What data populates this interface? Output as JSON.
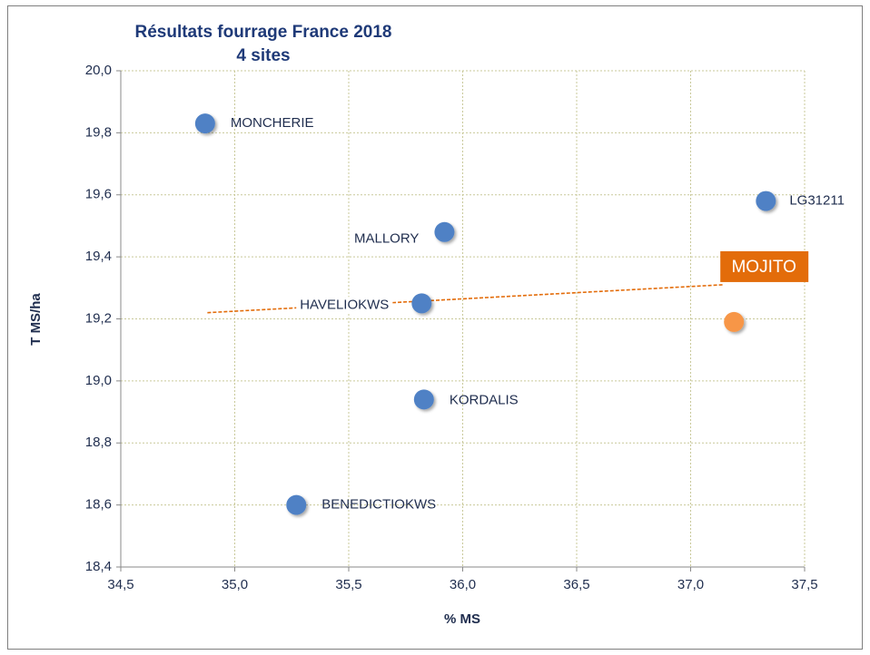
{
  "chart_data": {
    "type": "scatter",
    "title": "Résultats fourrage France 2018",
    "subtitle": "4  sites",
    "xlabel": "% MS",
    "ylabel": "T MS/ha",
    "labels": [
      "MONCHERIE",
      "LG31211",
      "MALLORY",
      "HAVELIOKWS",
      "KORDALIS",
      "BENEDICTIOKWS",
      "MOJITO"
    ],
    "x": [
      34.87,
      37.33,
      35.92,
      35.82,
      35.83,
      35.27,
      37.19
    ],
    "y": [
      19.83,
      19.58,
      19.48,
      19.25,
      18.94,
      18.6,
      19.19
    ],
    "colors": [
      "#4f81c5",
      "#4f81c5",
      "#4f81c5",
      "#4f81c5",
      "#4f81c5",
      "#4f81c5",
      "#f79646"
    ],
    "trendline": {
      "color": "#e36c0a",
      "x": [
        34.88,
        37.14
      ],
      "y": [
        19.22,
        19.31
      ]
    },
    "xlim": [
      34.5,
      37.5
    ],
    "xticks": [
      {
        "value": 34.5,
        "label": "34,5"
      },
      {
        "value": 35,
        "label": "35,0"
      },
      {
        "value": 35.5,
        "label": "35,5"
      },
      {
        "value": 36,
        "label": "36,0"
      },
      {
        "value": 36.5,
        "label": "36,5"
      },
      {
        "value": 37,
        "label": "37,0"
      },
      {
        "value": 37.5,
        "label": "37,5"
      }
    ],
    "ylim": [
      18.4,
      20.0
    ],
    "yticks": [
      {
        "value": 18.4,
        "label": "18,4"
      },
      {
        "value": 18.6,
        "label": "18,6"
      },
      {
        "value": 18.8,
        "label": "18,8"
      },
      {
        "value": 19,
        "label": "19,0"
      },
      {
        "value": 19.2,
        "label": "19,2"
      },
      {
        "value": 19.4,
        "label": "19,4"
      },
      {
        "value": 19.6,
        "label": "19,6"
      },
      {
        "value": 19.8,
        "label": "19,8"
      },
      {
        "value": 20,
        "label": "20,0"
      }
    ],
    "grid": true
  }
}
